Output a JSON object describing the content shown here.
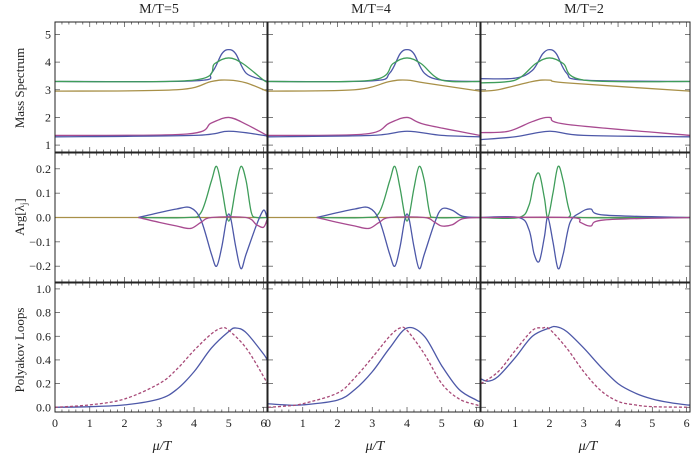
{
  "figure": {
    "column_titles": [
      "M/T=5",
      "M/T=4",
      "M/T=2"
    ],
    "row_labels": [
      "Mass Spectrum",
      "Arg[λ",
      "Polyakov Loops"
    ],
    "row_label_sub": "j",
    "row_label_close": "]",
    "x_label": "μ/T",
    "x_ticks": [
      "0",
      "1",
      "2",
      "3",
      "4",
      "5",
      "6"
    ],
    "y_ticks": [
      [
        "1",
        "2",
        "3",
        "4",
        "5"
      ],
      [
        "−0.2",
        "−0.1",
        "0.0",
        "0.1",
        "0.2"
      ],
      [
        "0.0",
        "0.2",
        "0.4",
        "0.6",
        "0.8",
        "1.0"
      ]
    ],
    "colors": {
      "blue": "#4d58a8",
      "gold": "#a89048",
      "magenta": "#a84a90",
      "green": "#3f9d5a",
      "dashed": "#a84a78"
    }
  },
  "chart_data": [
    {
      "type": "line",
      "title": "M/T=5",
      "ylabel": "Mass Spectrum",
      "xlim": [
        0,
        6.1
      ],
      "ylim": [
        0.75,
        5.45
      ],
      "series": [
        {
          "color": "blue",
          "x": [
            0,
            4.0,
            4.5,
            4.8,
            5.0,
            5.2,
            5.5,
            6.0,
            6.1
          ],
          "y": [
            3.3,
            3.32,
            3.6,
            4.3,
            4.45,
            4.3,
            3.6,
            3.35,
            3.3
          ]
        },
        {
          "color": "green",
          "x": [
            0,
            4.0,
            4.6,
            5.0,
            5.4,
            6.0,
            6.1
          ],
          "y": [
            3.3,
            3.35,
            3.95,
            4.15,
            3.95,
            3.35,
            3.3
          ]
        },
        {
          "color": "gold",
          "x": [
            0,
            3.5,
            4.5,
            5.0,
            5.5,
            6.1
          ],
          "y": [
            2.95,
            3.0,
            3.3,
            3.35,
            3.25,
            2.95
          ]
        },
        {
          "color": "magenta",
          "x": [
            0,
            3.8,
            4.5,
            5.0,
            5.5,
            6.1
          ],
          "y": [
            1.35,
            1.4,
            1.8,
            2.0,
            1.75,
            1.35
          ]
        },
        {
          "color": "blue",
          "x": [
            0,
            4.0,
            5.0,
            6.0,
            6.1
          ],
          "y": [
            1.3,
            1.35,
            1.5,
            1.35,
            1.3
          ]
        }
      ]
    },
    {
      "type": "line",
      "title": "M/T=4",
      "xlim": [
        0,
        6.1
      ],
      "ylim": [
        0.75,
        5.45
      ],
      "series": [
        {
          "color": "blue",
          "x": [
            0,
            3.0,
            3.5,
            3.8,
            4.0,
            4.2,
            4.5,
            5.0,
            6.1
          ],
          "y": [
            3.3,
            3.32,
            3.6,
            4.3,
            4.45,
            4.3,
            3.6,
            3.35,
            3.3
          ]
        },
        {
          "color": "green",
          "x": [
            0,
            3.0,
            3.6,
            4.0,
            4.4,
            5.0,
            6.1
          ],
          "y": [
            3.3,
            3.35,
            3.95,
            4.15,
            3.95,
            3.35,
            3.3
          ]
        },
        {
          "color": "gold",
          "x": [
            0,
            2.5,
            3.5,
            4.0,
            4.5,
            6.1
          ],
          "y": [
            2.95,
            3.0,
            3.3,
            3.35,
            3.25,
            2.95
          ]
        },
        {
          "color": "magenta",
          "x": [
            0,
            2.8,
            3.5,
            4.0,
            4.5,
            6.1
          ],
          "y": [
            1.35,
            1.4,
            1.8,
            2.0,
            1.75,
            1.35
          ]
        },
        {
          "color": "blue",
          "x": [
            0,
            3.0,
            4.0,
            5.0,
            6.1
          ],
          "y": [
            1.3,
            1.35,
            1.5,
            1.35,
            1.3
          ]
        }
      ]
    },
    {
      "type": "line",
      "title": "M/T=2",
      "xlim": [
        0,
        6.1
      ],
      "ylim": [
        0.75,
        5.45
      ],
      "series": [
        {
          "color": "blue",
          "x": [
            0,
            1.0,
            1.5,
            1.8,
            2.0,
            2.2,
            2.5,
            3.0,
            6.1
          ],
          "y": [
            3.4,
            3.42,
            3.7,
            4.3,
            4.45,
            4.3,
            3.6,
            3.35,
            3.3
          ]
        },
        {
          "color": "green",
          "x": [
            0,
            1.0,
            1.6,
            2.0,
            2.4,
            3.0,
            6.1
          ],
          "y": [
            3.25,
            3.35,
            3.95,
            4.15,
            3.95,
            3.35,
            3.3
          ]
        },
        {
          "color": "gold",
          "x": [
            0,
            0.5,
            1.5,
            2.0,
            2.5,
            6.1
          ],
          "y": [
            2.95,
            3.0,
            3.3,
            3.35,
            3.25,
            2.95
          ]
        },
        {
          "color": "magenta",
          "x": [
            0,
            0.8,
            1.5,
            2.0,
            2.5,
            6.1
          ],
          "y": [
            1.45,
            1.5,
            1.85,
            2.0,
            1.75,
            1.35
          ]
        },
        {
          "color": "blue",
          "x": [
            0,
            1.0,
            2.0,
            3.0,
            6.1
          ],
          "y": [
            1.2,
            1.3,
            1.5,
            1.35,
            1.3
          ]
        }
      ]
    },
    {
      "type": "line",
      "ylabel": "Arg[λj]",
      "xlim": [
        0,
        6.1
      ],
      "ylim": [
        -0.265,
        0.265
      ],
      "series": [
        {
          "color": "gold",
          "x": [
            0,
            6.1
          ],
          "y": [
            0,
            0
          ]
        },
        {
          "color": "green",
          "x": [
            2.4,
            3.8,
            4.2,
            4.5,
            4.65,
            4.8,
            4.95,
            5.05,
            5.2,
            5.35,
            5.5,
            5.65,
            5.8,
            6.1
          ],
          "y": [
            0,
            0,
            0.02,
            0.15,
            0.21,
            0.12,
            0.0,
            0.0,
            0.12,
            0.21,
            0.15,
            0.02,
            0,
            0
          ]
        },
        {
          "color": "blue",
          "x": [
            2.4,
            3.0,
            3.5,
            3.9,
            4.2,
            4.5,
            4.65,
            4.8,
            4.95,
            5.05,
            5.2,
            5.35,
            5.5,
            5.8,
            6.0,
            6.1
          ],
          "y": [
            0,
            0.02,
            0.035,
            0.04,
            -0.01,
            -0.15,
            -0.2,
            -0.12,
            0.0,
            0.0,
            -0.12,
            -0.21,
            -0.15,
            -0.03,
            0.03,
            0.0
          ]
        },
        {
          "color": "magenta",
          "x": [
            2.4,
            3.0,
            3.5,
            3.9,
            4.2,
            4.5,
            5.5,
            5.8,
            6.0,
            6.1
          ],
          "y": [
            0,
            -0.02,
            -0.035,
            -0.045,
            -0.02,
            0,
            0,
            -0.03,
            -0.04,
            -0.01
          ]
        }
      ]
    },
    {
      "type": "line",
      "xlim": [
        0,
        6.1
      ],
      "ylim": [
        -0.265,
        0.265
      ],
      "series": [
        {
          "color": "gold",
          "x": [
            0,
            6.1
          ],
          "y": [
            0,
            0
          ]
        },
        {
          "color": "green",
          "x": [
            1.4,
            2.8,
            3.2,
            3.5,
            3.65,
            3.8,
            3.95,
            4.05,
            4.2,
            4.35,
            4.5,
            4.65,
            4.8,
            5.5,
            6.1
          ],
          "y": [
            0,
            0,
            0.02,
            0.15,
            0.21,
            0.12,
            0.0,
            0.0,
            0.12,
            0.21,
            0.15,
            0.02,
            0,
            0,
            0
          ]
        },
        {
          "color": "blue",
          "x": [
            1.4,
            2.0,
            2.5,
            2.9,
            3.2,
            3.5,
            3.65,
            3.8,
            3.95,
            4.05,
            4.2,
            4.35,
            4.5,
            4.8,
            5.0,
            5.3,
            5.6,
            6.1
          ],
          "y": [
            0,
            0.02,
            0.035,
            0.04,
            -0.01,
            -0.15,
            -0.2,
            -0.12,
            0.0,
            0.0,
            -0.12,
            -0.21,
            -0.15,
            -0.02,
            0.035,
            0.03,
            0.005,
            0
          ]
        },
        {
          "color": "magenta",
          "x": [
            1.4,
            2.0,
            2.5,
            2.9,
            3.2,
            3.5,
            4.5,
            4.8,
            5.0,
            5.3,
            5.6,
            6.1
          ],
          "y": [
            0,
            -0.02,
            -0.035,
            -0.045,
            -0.02,
            0,
            0,
            -0.02,
            -0.035,
            -0.03,
            -0.005,
            0
          ]
        }
      ]
    },
    {
      "type": "line",
      "xlim": [
        0,
        6.1
      ],
      "ylim": [
        -0.265,
        0.265
      ],
      "series": [
        {
          "color": "gold",
          "x": [
            0,
            6.1
          ],
          "y": [
            0,
            0
          ]
        },
        {
          "color": "green",
          "x": [
            0,
            1.1,
            1.4,
            1.55,
            1.7,
            1.85,
            1.95,
            2.1,
            2.25,
            2.4,
            2.6,
            2.9,
            6.1
          ],
          "y": [
            0,
            0,
            0.05,
            0.15,
            0.18,
            0.08,
            0.0,
            0.1,
            0.21,
            0.15,
            0.02,
            0,
            0
          ]
        },
        {
          "color": "blue",
          "x": [
            0,
            1.1,
            1.4,
            1.55,
            1.7,
            1.85,
            1.95,
            2.1,
            2.25,
            2.4,
            2.6,
            2.9,
            3.2,
            3.6,
            6.1
          ],
          "y": [
            0,
            0,
            -0.05,
            -0.15,
            -0.18,
            -0.08,
            0.0,
            -0.1,
            -0.21,
            -0.15,
            -0.02,
            0.02,
            0.035,
            0.01,
            0
          ]
        },
        {
          "color": "magenta",
          "x": [
            0,
            2.6,
            2.9,
            3.2,
            3.6,
            6.1
          ],
          "y": [
            0,
            0,
            -0.02,
            -0.035,
            -0.01,
            0
          ]
        }
      ]
    },
    {
      "type": "line",
      "ylabel": "Polyakov Loops",
      "xlim": [
        0,
        6.1
      ],
      "ylim": [
        -0.04,
        1.05
      ],
      "series": [
        {
          "color": "blue",
          "style": "solid",
          "x": [
            0,
            1,
            2,
            3,
            3.5,
            4,
            4.5,
            5,
            5.2,
            5.5,
            6.0,
            6.1
          ],
          "y": [
            0.0,
            0.005,
            0.02,
            0.07,
            0.15,
            0.3,
            0.5,
            0.64,
            0.67,
            0.63,
            0.45,
            0.4
          ]
        },
        {
          "color": "dashed",
          "style": "dashed",
          "x": [
            0,
            1,
            2,
            3,
            3.5,
            4,
            4.5,
            4.8,
            5,
            5.5,
            6,
            6.1
          ],
          "y": [
            0.0,
            0.02,
            0.07,
            0.2,
            0.32,
            0.48,
            0.62,
            0.67,
            0.65,
            0.5,
            0.26,
            0.2
          ]
        }
      ]
    },
    {
      "type": "line",
      "xlim": [
        0,
        6.1
      ],
      "ylim": [
        -0.04,
        1.05
      ],
      "series": [
        {
          "color": "blue",
          "style": "solid",
          "x": [
            0,
            0.5,
            1,
            2,
            2.5,
            3,
            3.5,
            4,
            4.5,
            5,
            5.5,
            6,
            6.1
          ],
          "y": [
            0.03,
            0.02,
            0.02,
            0.06,
            0.15,
            0.3,
            0.5,
            0.67,
            0.6,
            0.35,
            0.15,
            0.06,
            0.05
          ]
        },
        {
          "color": "dashed",
          "style": "dashed",
          "x": [
            0,
            0.5,
            1,
            2,
            2.5,
            3,
            3.5,
            3.8,
            4,
            4.5,
            5,
            5.5,
            6,
            6.1
          ],
          "y": [
            0.0,
            0.01,
            0.03,
            0.12,
            0.25,
            0.42,
            0.6,
            0.67,
            0.65,
            0.45,
            0.2,
            0.07,
            0.02,
            0.015
          ]
        }
      ]
    },
    {
      "type": "line",
      "xlim": [
        0,
        6.1
      ],
      "ylim": [
        -0.04,
        1.05
      ],
      "series": [
        {
          "color": "blue",
          "style": "solid",
          "x": [
            0,
            0.2,
            0.5,
            1,
            1.5,
            2,
            2.2,
            2.5,
            3,
            3.5,
            4,
            4.5,
            5,
            5.5,
            6,
            6.1
          ],
          "y": [
            0.24,
            0.22,
            0.26,
            0.42,
            0.6,
            0.67,
            0.68,
            0.64,
            0.5,
            0.34,
            0.2,
            0.12,
            0.07,
            0.04,
            0.02,
            0.02
          ]
        },
        {
          "color": "dashed",
          "style": "dashed",
          "x": [
            0,
            0.5,
            1,
            1.5,
            1.8,
            2,
            2.5,
            3,
            3.5,
            4,
            4.5,
            5,
            6.1
          ],
          "y": [
            0.2,
            0.3,
            0.48,
            0.65,
            0.67,
            0.66,
            0.5,
            0.3,
            0.14,
            0.05,
            0.02,
            0.005,
            0
          ]
        }
      ]
    }
  ]
}
